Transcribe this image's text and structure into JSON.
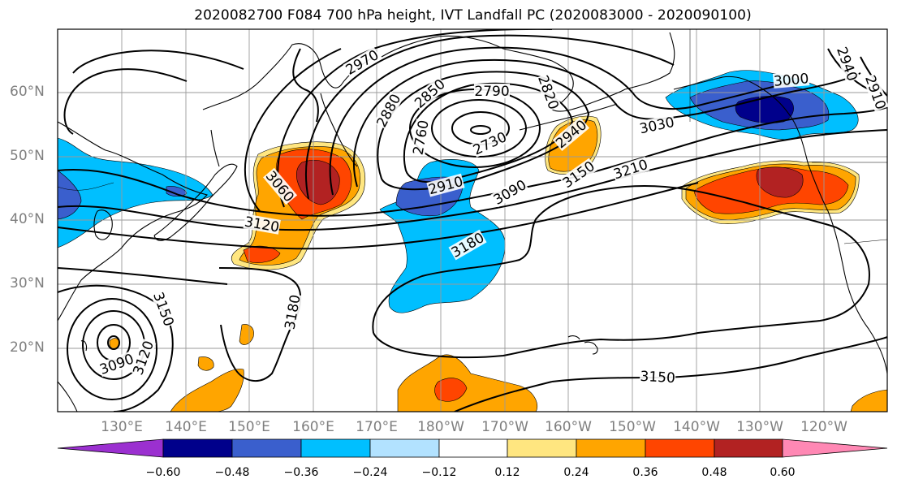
{
  "title": "2020082700 F084 700 hPa height, IVT Landfall PC (2020083000 - 2020090100)",
  "lat_labels": [
    "60°N",
    "50°N",
    "40°N",
    "30°N",
    "20°N"
  ],
  "lon_labels": [
    "130°E",
    "140°E",
    "150°E",
    "160°E",
    "170°E",
    "180°W",
    "170°W",
    "160°W",
    "150°W",
    "140°W",
    "130°W",
    "120°W"
  ],
  "contour_labels": [
    "2970",
    "2880",
    "2850",
    "2790",
    "2820",
    "2760",
    "2730",
    "2910",
    "3030",
    "3000",
    "2940",
    "2910",
    "3060",
    "3120",
    "3090",
    "3150",
    "3210",
    "3180",
    "3180",
    "3150",
    "3120",
    "3090",
    "3150",
    "2940"
  ],
  "colorbar": {
    "ticks": [
      "−0.60",
      "−0.48",
      "−0.36",
      "−0.24",
      "−0.12",
      "0.12",
      "0.24",
      "0.36",
      "0.48",
      "0.60"
    ],
    "colors": [
      "#9b30d0",
      "#00008b",
      "#3a5fcd",
      "#00bfff",
      "#b2e2ff",
      "#ffffff",
      "#ffe680",
      "#ffa500",
      "#ff4500",
      "#b22222",
      "#ff88b4"
    ]
  }
}
